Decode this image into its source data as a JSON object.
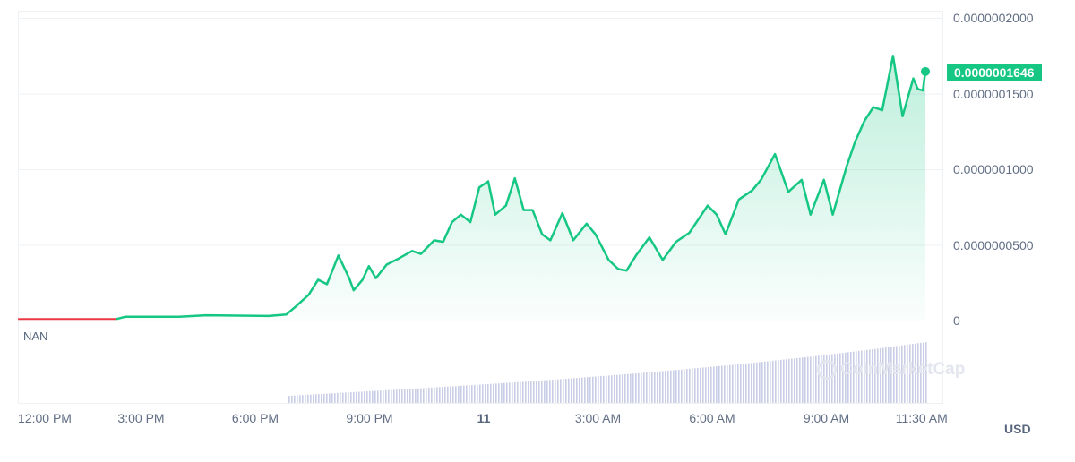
{
  "chart_data": {
    "type": "area",
    "currency": "USD",
    "current_price_label": "0.0000001646",
    "pane_label": "NAN",
    "watermark": "CoinMarketCap",
    "colors": {
      "up": "#16c784",
      "down": "#ea3943",
      "volume": "#c9cde6"
    },
    "ylim": [
      0,
      2e-07
    ],
    "y_ticks": [
      {
        "value": 0,
        "label": "0"
      },
      {
        "value": 5e-08,
        "label": "0.0000000500"
      },
      {
        "value": 1e-07,
        "label": "0.0000001000"
      },
      {
        "value": 1.5e-07,
        "label": "0.0000001500"
      },
      {
        "value": 2e-07,
        "label": "0.0000002000"
      }
    ],
    "x_ticks": [
      {
        "t": "10 12:00",
        "label": "12:00 PM"
      },
      {
        "t": "10 15:00",
        "label": "3:00 PM"
      },
      {
        "t": "10 18:00",
        "label": "6:00 PM"
      },
      {
        "t": "10 21:00",
        "label": "9:00 PM"
      },
      {
        "t": "11 00:00",
        "label": "11",
        "bold": true
      },
      {
        "t": "11 03:00",
        "label": "3:00 AM"
      },
      {
        "t": "11 06:00",
        "label": "6:00 AM"
      },
      {
        "t": "11 09:00",
        "label": "9:00 AM"
      },
      {
        "t": "11 11:30",
        "label": "11:30 AM"
      }
    ],
    "grid": true,
    "series": [
      {
        "points": [
          [
            "10 11:46",
            1e-09
          ],
          [
            "10 14:21",
            1e-09
          ],
          [
            "10 14:35",
            2.5e-09
          ],
          [
            "10 16:00",
            2.5e-09
          ],
          [
            "10 16:42",
            3.5e-09
          ],
          [
            "10 18:21",
            3e-09
          ],
          [
            "10 18:49",
            4e-09
          ],
          [
            "10 19:03",
            9e-09
          ],
          [
            "10 19:24",
            1.7e-08
          ],
          [
            "10 19:39",
            2.7e-08
          ],
          [
            "10 19:53",
            2.4e-08
          ],
          [
            "10 20:11",
            4.3e-08
          ],
          [
            "10 20:28",
            2.8e-08
          ],
          [
            "10 20:35",
            2e-08
          ],
          [
            "10 20:49",
            2.7e-08
          ],
          [
            "10 20:59",
            3.6e-08
          ],
          [
            "10 21:10",
            2.8e-08
          ],
          [
            "10 21:27",
            3.7e-08
          ],
          [
            "10 21:46",
            4.1e-08
          ],
          [
            "10 22:07",
            4.6e-08
          ],
          [
            "10 22:21",
            4.4e-08
          ],
          [
            "10 22:42",
            5.3e-08
          ],
          [
            "10 22:56",
            5.2e-08
          ],
          [
            "10 23:10",
            6.5e-08
          ],
          [
            "10 23:24",
            7e-08
          ],
          [
            "10 23:39",
            6.5e-08
          ],
          [
            "10 23:53",
            8.8e-08
          ],
          [
            "11 00:07",
            9.2e-08
          ],
          [
            "11 00:18",
            7e-08
          ],
          [
            "11 00:35",
            7.6e-08
          ],
          [
            "11 00:49",
            9.4e-08
          ],
          [
            "11 01:03",
            7.3e-08
          ],
          [
            "11 01:17",
            7.3e-08
          ],
          [
            "11 01:32",
            5.7e-08
          ],
          [
            "11 01:45",
            5.3e-08
          ],
          [
            "11 02:04",
            7.1e-08
          ],
          [
            "11 02:21",
            5.3e-08
          ],
          [
            "11 02:42",
            6.4e-08
          ],
          [
            "11 02:56",
            5.7e-08
          ],
          [
            "11 03:17",
            4e-08
          ],
          [
            "11 03:32",
            3.4e-08
          ],
          [
            "11 03:45",
            3.3e-08
          ],
          [
            "11 04:00",
            4.3e-08
          ],
          [
            "11 04:21",
            5.5e-08
          ],
          [
            "11 04:42",
            4e-08
          ],
          [
            "11 05:03",
            5.2e-08
          ],
          [
            "11 05:24",
            5.8e-08
          ],
          [
            "11 05:53",
            7.6e-08
          ],
          [
            "11 06:07",
            7e-08
          ],
          [
            "11 06:21",
            5.7e-08
          ],
          [
            "11 06:42",
            8e-08
          ],
          [
            "11 07:03",
            8.6e-08
          ],
          [
            "11 07:17",
            9.3e-08
          ],
          [
            "11 07:39",
            1.1e-07
          ],
          [
            "11 08:00",
            8.5e-08
          ],
          [
            "11 08:21",
            9.3e-08
          ],
          [
            "11 08:35",
            7e-08
          ],
          [
            "11 08:56",
            9.3e-08
          ],
          [
            "11 09:10",
            7e-08
          ],
          [
            "11 09:32",
            1.02e-07
          ],
          [
            "11 09:45",
            1.18e-07
          ],
          [
            "11 10:00",
            1.32e-07
          ],
          [
            "11 10:14",
            1.41e-07
          ],
          [
            "11 10:28",
            1.39e-07
          ],
          [
            "11 10:45",
            1.75e-07
          ],
          [
            "11 11:00",
            1.35e-07
          ],
          [
            "11 11:17",
            1.6e-07
          ],
          [
            "11 11:24",
            1.53e-07
          ],
          [
            "11 11:32",
            1.52e-07
          ],
          [
            "11 11:36",
            1.646e-07
          ]
        ]
      }
    ],
    "red_segment_end": "10 14:21"
  }
}
